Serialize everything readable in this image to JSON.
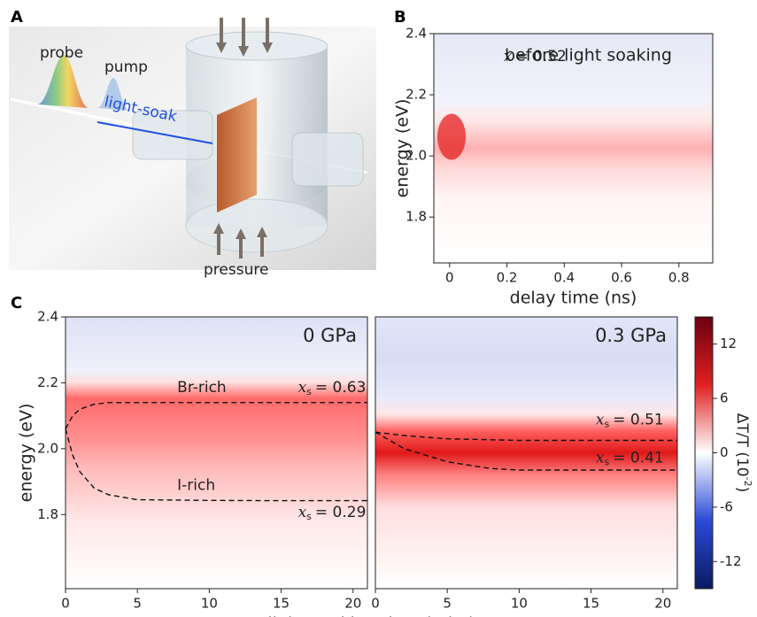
{
  "panel_a": {
    "label": "A",
    "probe": "probe",
    "pump": "pump",
    "light_soak": "light-soak",
    "pressure": "pressure"
  },
  "chart_data": [
    {
      "type": "heatmap",
      "panel": "B",
      "title": "before light soaking",
      "annotations": [
        {
          "var": "x",
          "text": "= 0.52"
        }
      ],
      "x_label": "delay time (ns)",
      "y_label": "energy (eV)",
      "xlim": [
        -0.055,
        0.918
      ],
      "xticks": [
        0,
        0.2,
        0.4,
        0.6,
        0.8
      ],
      "ylim": [
        1.65,
        2.4
      ],
      "yticks": [
        1.8,
        {
          "value": 2,
          "label": "2.0"
        },
        2.2,
        2.4
      ]
    },
    {
      "type": "heatmap",
      "panel": "C",
      "title": "0 GPa",
      "annotations": [
        {
          "text": "Br-rich"
        },
        {
          "text": "I-rich"
        },
        {
          "var": "x",
          "sub": "s",
          "text": "= 0.63"
        },
        {
          "var": "x",
          "sub": "s",
          "text": "= 0.29"
        }
      ],
      "x_label": "light-soaking time (min.)",
      "y_label": "energy (eV)",
      "xlim": [
        0,
        21
      ],
      "xticks": [
        0,
        5,
        10,
        15,
        20
      ],
      "ylim": [
        1.575,
        2.4
      ],
      "yticks": [
        1.8,
        {
          "value": 2,
          "label": "2.0"
        },
        2.2,
        2.4
      ],
      "lines": [
        {
          "x": [
            0,
            0.5,
            1,
            2,
            3,
            5,
            10,
            15,
            21
          ],
          "values": [
            2.06,
            2.1,
            2.12,
            2.135,
            2.14,
            2.14,
            2.14,
            2.14,
            2.14
          ]
        },
        {
          "x": [
            0,
            0.5,
            1,
            2,
            3,
            5,
            10,
            15,
            21
          ],
          "values": [
            2.06,
            1.98,
            1.93,
            1.88,
            1.86,
            1.845,
            1.843,
            1.842,
            1.842
          ]
        }
      ]
    },
    {
      "type": "heatmap",
      "title": "0.3 GPa",
      "annotations": [
        {
          "var": "x",
          "sub": "s",
          "text": "= 0.51"
        },
        {
          "var": "x",
          "sub": "s",
          "text": "= 0.41"
        }
      ],
      "xlim": [
        0,
        21
      ],
      "xticks": [
        0,
        5,
        10,
        15,
        20
      ],
      "ylim": [
        1.575,
        2.4
      ],
      "lines": [
        {
          "x": [
            0,
            2,
            5,
            10,
            15,
            21
          ],
          "values": [
            2.05,
            2.04,
            2.03,
            2.025,
            2.025,
            2.025
          ]
        },
        {
          "x": [
            0,
            2,
            5,
            8,
            10,
            15,
            21
          ],
          "values": [
            2.05,
            2.0,
            1.96,
            1.94,
            1.935,
            1.935,
            1.935
          ]
        }
      ]
    },
    {
      "type": "colorbar",
      "label": {
        "main": "ΔT/T (10",
        "sup": "-2",
        "end": ")"
      },
      "lim": [
        -15,
        15
      ],
      "ticks": [
        -12,
        -6,
        0,
        6,
        12
      ]
    }
  ]
}
